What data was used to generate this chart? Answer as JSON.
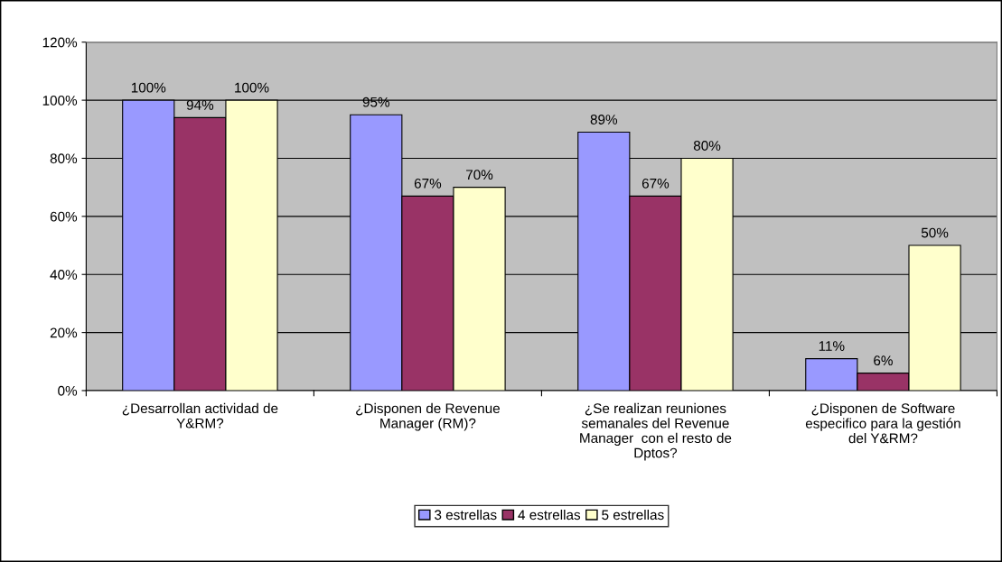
{
  "chart_data": {
    "type": "bar",
    "categories": [
      "¿Desarrollan actividad de\nY&RM?",
      "¿Disponen de Revenue\nManager (RM)?",
      "¿Se realizan reuniones\nsemanales del Revenue\nManager  con el resto de\nDptos?",
      "¿Disponen de Software\nespecifico para la gestión\ndel Y&RM?"
    ],
    "series": [
      {
        "name": "3 estrellas",
        "color": "#9999ff",
        "values": [
          100,
          95,
          89,
          11
        ],
        "value_labels": [
          "100%",
          "95%",
          "89%",
          "11%"
        ]
      },
      {
        "name": "4 estrellas",
        "color": "#993366",
        "values": [
          94,
          67,
          67,
          6
        ],
        "value_labels": [
          "94%",
          "67%",
          "67%",
          "6%"
        ]
      },
      {
        "name": "5 estrellas",
        "color": "#ffffcc",
        "values": [
          100,
          70,
          80,
          50
        ],
        "value_labels": [
          "100%",
          "70%",
          "80%",
          "50%"
        ]
      }
    ],
    "ylim": [
      0,
      120
    ],
    "yticks": [
      {
        "value": 0,
        "label": "0%"
      },
      {
        "value": 20,
        "label": "20%"
      },
      {
        "value": 40,
        "label": "40%"
      },
      {
        "value": 60,
        "label": "60%"
      },
      {
        "value": 80,
        "label": "80%"
      },
      {
        "value": 100,
        "label": "100%"
      },
      {
        "value": 120,
        "label": "120%"
      }
    ],
    "grid": "y",
    "legend": "bottom"
  }
}
